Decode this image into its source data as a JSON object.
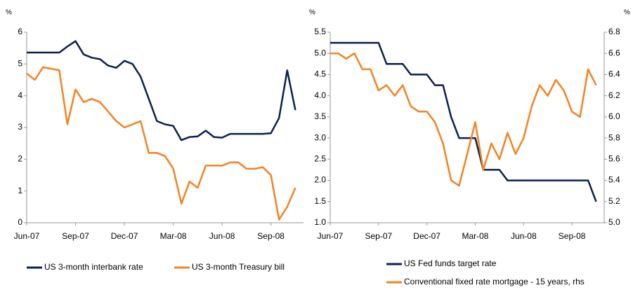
{
  "chart_data": [
    {
      "type": "line",
      "y_label": "%",
      "categories": [
        "Jun-07",
        null,
        null,
        null,
        null,
        null,
        "Sep-07",
        null,
        null,
        null,
        null,
        null,
        "Dec-07",
        null,
        null,
        null,
        null,
        null,
        "Mar-08",
        null,
        null,
        null,
        null,
        null,
        "Jun-08",
        null,
        null,
        null,
        null,
        null,
        "Sep-08",
        null,
        null,
        null
      ],
      "ylim": [
        0,
        6
      ],
      "yticks": [
        0,
        1,
        2,
        3,
        4,
        5,
        6
      ],
      "series": [
        {
          "name": "US 3-month interbank rate",
          "color": "#0c1f4f",
          "values": [
            5.36,
            5.36,
            5.36,
            5.36,
            5.36,
            5.55,
            5.72,
            5.3,
            5.2,
            5.15,
            4.95,
            4.88,
            5.1,
            5.0,
            4.6,
            3.9,
            3.2,
            3.1,
            3.05,
            2.6,
            2.7,
            2.72,
            2.9,
            2.7,
            2.68,
            2.8,
            2.8,
            2.8,
            2.8,
            2.8,
            2.82,
            3.3,
            4.8,
            3.55
          ]
        },
        {
          "name": "US 3-month Treasury bill",
          "color": "#f58220",
          "values": [
            4.7,
            4.5,
            4.9,
            4.85,
            4.8,
            3.1,
            4.2,
            3.8,
            3.9,
            3.8,
            3.5,
            3.2,
            3.0,
            3.1,
            3.2,
            2.2,
            2.2,
            2.1,
            1.7,
            0.6,
            1.3,
            1.1,
            1.8,
            1.8,
            1.8,
            1.9,
            1.9,
            1.7,
            1.7,
            1.75,
            1.5,
            0.1,
            0.5,
            1.1
          ]
        }
      ]
    },
    {
      "type": "line",
      "y_label": "%",
      "y2_label": "%",
      "categories": [
        "Jun-07",
        null,
        null,
        null,
        null,
        null,
        "Sep-07",
        null,
        null,
        null,
        null,
        null,
        "Dec-07",
        null,
        null,
        null,
        null,
        null,
        "Mar-08",
        null,
        null,
        null,
        null,
        null,
        "Jun-08",
        null,
        null,
        null,
        null,
        null,
        "Sep-08",
        null,
        null,
        null
      ],
      "ylim": [
        1.0,
        5.5
      ],
      "yticks": [
        {
          "value": 1,
          "label": "1.0"
        },
        1.5,
        {
          "value": 2,
          "label": "2.0"
        },
        2.5,
        {
          "value": 3,
          "label": "3.0"
        },
        3.5,
        {
          "value": 4,
          "label": "4.0"
        },
        4.5,
        {
          "value": 5,
          "label": "5.0"
        },
        5.5
      ],
      "y2lim": [
        5.0,
        6.8
      ],
      "y2ticks": [
        {
          "value": 5,
          "label": "5.0"
        },
        5.2,
        5.4,
        5.6,
        5.8,
        {
          "value": 6,
          "label": "6.0"
        },
        6.2,
        6.4,
        6.6,
        6.8
      ],
      "series": [
        {
          "name": "US Fed funds target rate",
          "color": "#0c1f4f",
          "values": [
            5.25,
            5.25,
            5.25,
            5.25,
            5.25,
            5.25,
            5.25,
            4.75,
            4.75,
            4.75,
            4.5,
            4.5,
            4.5,
            4.25,
            4.25,
            3.5,
            3.0,
            3.0,
            3.0,
            2.25,
            2.25,
            2.25,
            2.0,
            2.0,
            2.0,
            2.0,
            2.0,
            2.0,
            2.0,
            2.0,
            2.0,
            2.0,
            2.0,
            1.5
          ]
        },
        {
          "name": "Conventional fixed rate mortgage - 15 years, rhs",
          "color": "#f58220",
          "axis": "y2",
          "values": [
            6.6,
            6.6,
            6.55,
            6.6,
            6.45,
            6.45,
            6.25,
            6.3,
            6.2,
            6.3,
            6.1,
            6.05,
            6.05,
            5.95,
            5.75,
            5.4,
            5.35,
            5.65,
            5.95,
            5.5,
            5.75,
            5.6,
            5.85,
            5.65,
            5.8,
            6.1,
            6.3,
            6.2,
            6.35,
            6.25,
            6.05,
            6.0,
            6.45,
            6.3
          ]
        }
      ]
    }
  ]
}
